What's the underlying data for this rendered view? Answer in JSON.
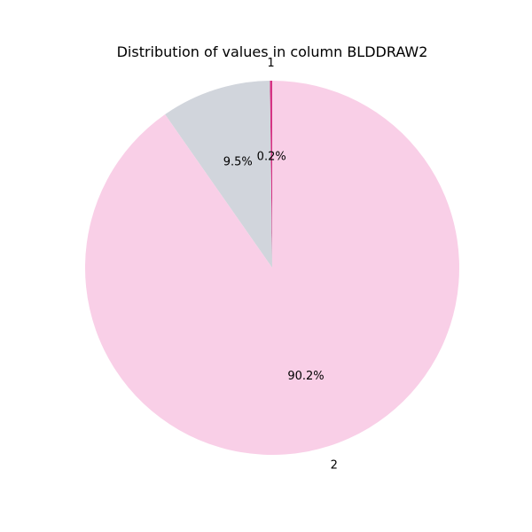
{
  "chart_data": {
    "type": "pie",
    "title": "Distribution of values in column BLDDRAW2",
    "slices": [
      {
        "label": "1",
        "value": 0.2,
        "pct_text": "0.2%",
        "color": "#d63384"
      },
      {
        "label": "",
        "value": 9.5,
        "pct_text": "9.5%",
        "color": "#d1d5dc"
      },
      {
        "label": "2",
        "value": 90.2,
        "pct_text": "90.2%",
        "color": "#f9cfe7"
      }
    ]
  }
}
